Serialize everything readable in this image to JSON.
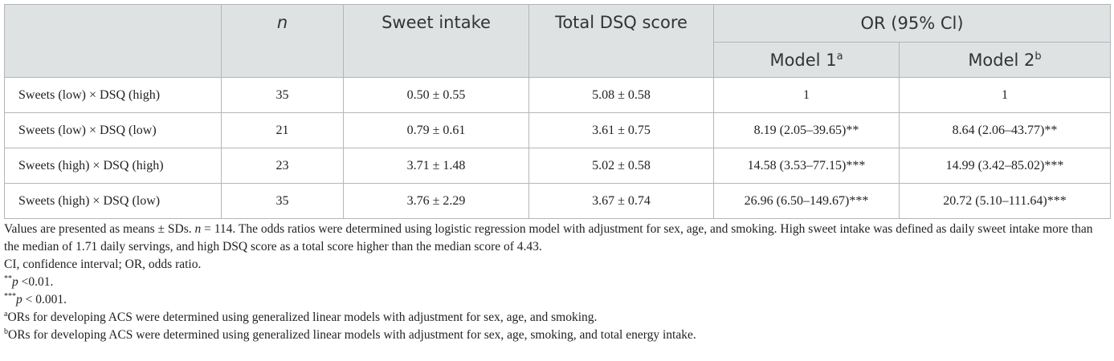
{
  "header": {
    "blank": "",
    "n": "n",
    "sweet_intake": "Sweet intake",
    "total_dsq": "Total DSQ score",
    "or": "OR (95% Cl)",
    "model1": "Model 1",
    "model1_sup": "a",
    "model2": "Model 2",
    "model2_sup": "b"
  },
  "rows": [
    {
      "label": "Sweets (low) × DSQ (high)",
      "n": "35",
      "sweet": "0.50 ± 0.55",
      "dsq": "5.08 ± 0.58",
      "m1": "1",
      "m2": "1"
    },
    {
      "label": "Sweets (low) × DSQ (low)",
      "n": "21",
      "sweet": "0.79 ± 0.61",
      "dsq": "3.61 ± 0.75",
      "m1": "8.19 (2.05–39.65)**",
      "m2": "8.64 (2.06–43.77)**"
    },
    {
      "label": "Sweets (high) × DSQ (high)",
      "n": "23",
      "sweet": "3.71 ± 1.48",
      "dsq": "5.02 ± 0.58",
      "m1": "14.58 (3.53–77.15)***",
      "m2": "14.99 (3.42–85.02)***"
    },
    {
      "label": "Sweets (high) × DSQ (low)",
      "n": "35",
      "sweet": "3.76 ± 2.29",
      "dsq": "3.67 ± 0.74",
      "m1": "26.96 (6.50–149.67)***",
      "m2": "20.72 (5.10–111.64)***"
    }
  ],
  "notes": {
    "values_a": "Values are presented as means ± SDs. ",
    "values_n": "n",
    "values_b": " = 114. The odds ratios were determined using logistic regression model with adjustment for sex, age, and smoking. High sweet intake was defined as daily sweet intake more than the median of 1.71 daily servings, and high DSQ score as a total score higher than the median score of 4.43.",
    "ci": "CI, confidence interval; OR, odds ratio.",
    "p01_stars": "**",
    "p01_p": "p",
    "p01_rest": " <0.01.",
    "p001_stars": "***",
    "p001_p": "p",
    "p001_rest": " < 0.001.",
    "a_sup": "a",
    "a_text": "ORs for developing ACS were determined using generalized linear models with adjustment for sex, age, and smoking.",
    "b_sup": "b",
    "b_text": "ORs for developing ACS were determined using generalized linear models with adjustment for sex, age, smoking, and total energy intake."
  }
}
